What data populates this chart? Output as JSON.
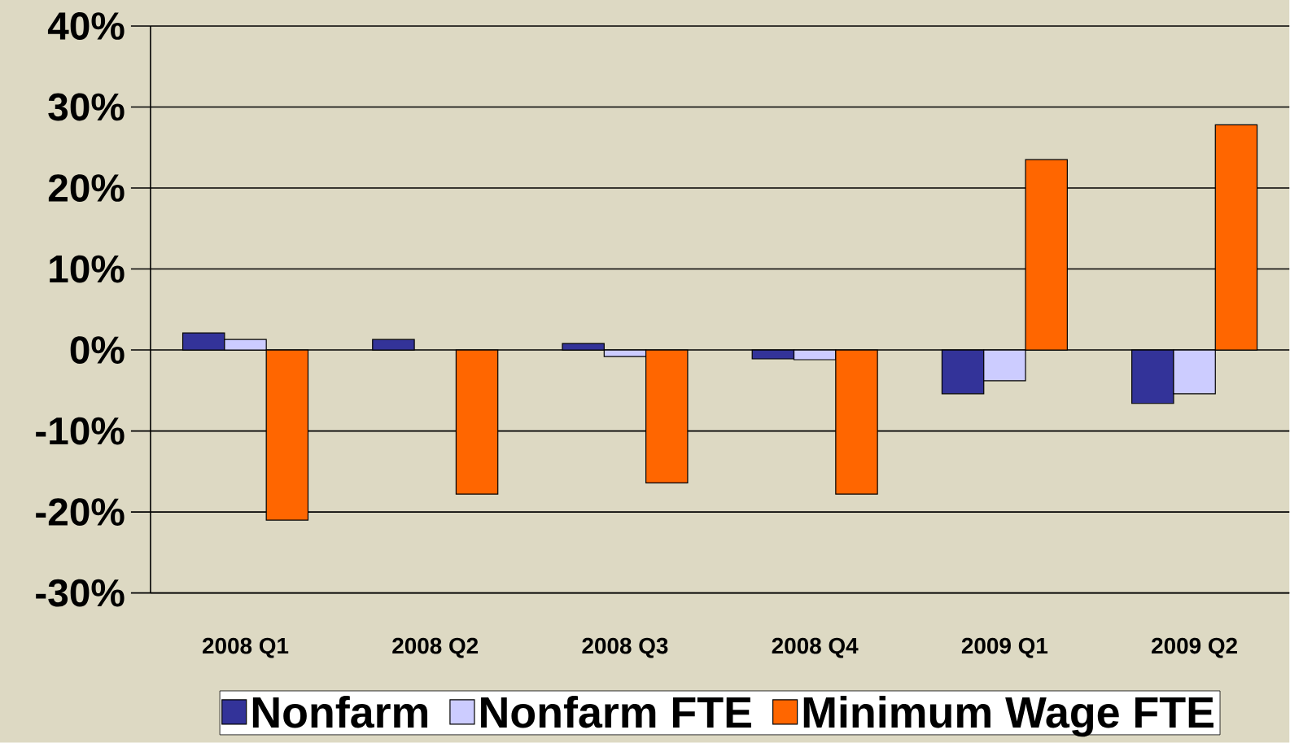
{
  "chart_data": {
    "type": "bar",
    "categories": [
      "2008 Q1",
      "2008 Q2",
      "2008 Q3",
      "2008 Q4",
      "2009 Q1",
      "2009 Q2"
    ],
    "series": [
      {
        "name": "Nonfarm",
        "color": "#333399",
        "values": [
          2.1,
          1.3,
          0.8,
          -1.1,
          -5.4,
          -6.6
        ]
      },
      {
        "name": "Nonfarm FTE",
        "color": "#ccccff",
        "values": [
          1.3,
          null,
          -0.8,
          -1.2,
          -3.8,
          -5.4
        ]
      },
      {
        "name": "Minimum Wage FTE",
        "color": "#ff6600",
        "values": [
          -21.0,
          -17.8,
          -16.4,
          -17.8,
          23.5,
          27.8
        ]
      }
    ],
    "ylim": [
      -30,
      40
    ],
    "yticks": [
      {
        "value": -30,
        "label": "-30%"
      },
      {
        "value": -20,
        "label": "-20%"
      },
      {
        "value": -10,
        "label": "-10%"
      },
      {
        "value": 0,
        "label": "0%"
      },
      {
        "value": 10,
        "label": "10%"
      },
      {
        "value": 20,
        "label": "20%"
      },
      {
        "value": 30,
        "label": "30%"
      },
      {
        "value": 40,
        "label": "40%"
      }
    ],
    "grid": "y",
    "legend": "bottom"
  }
}
